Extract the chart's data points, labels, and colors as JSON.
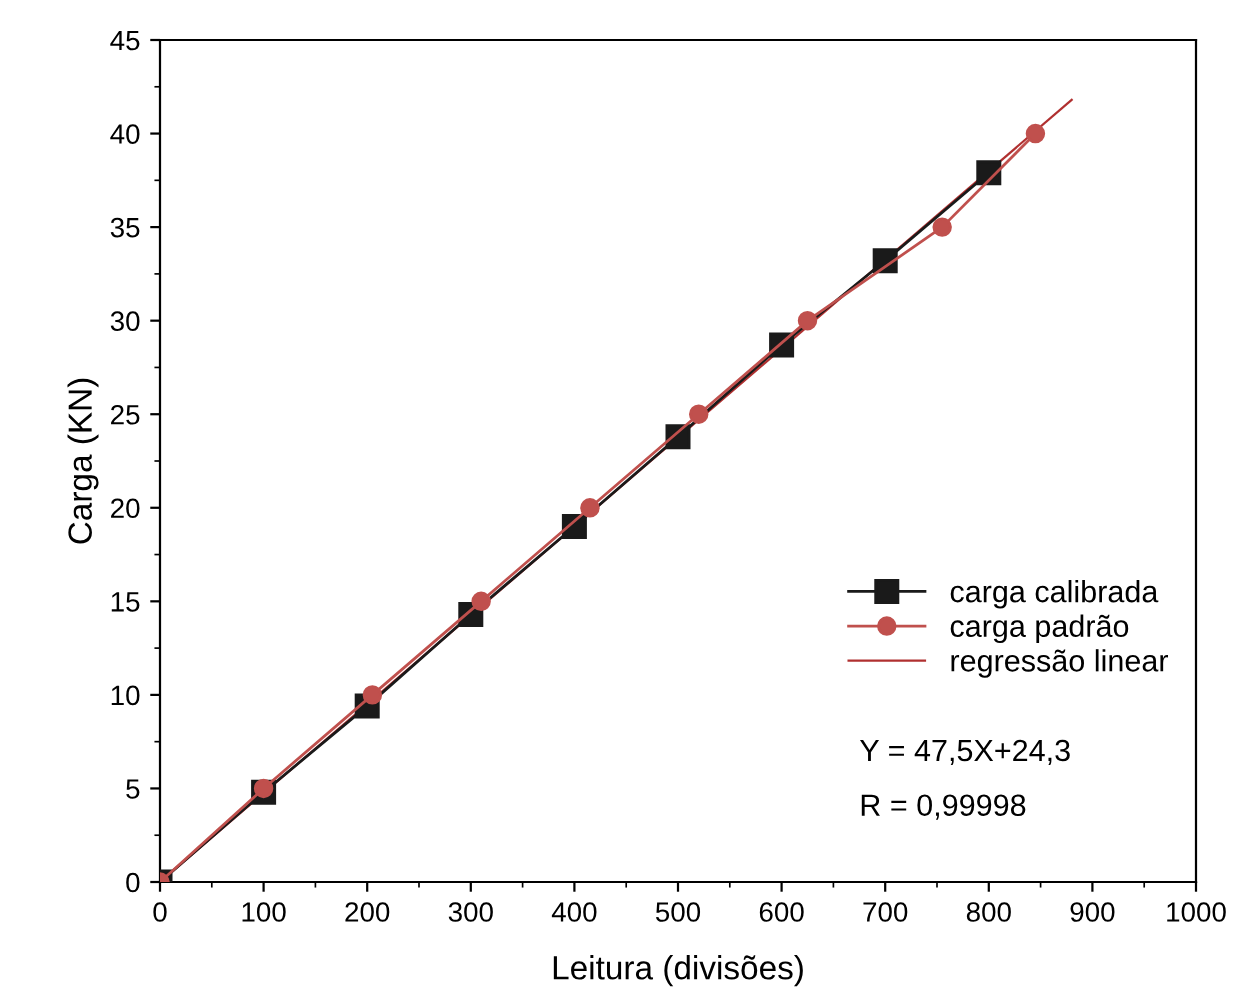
{
  "chart_data": {
    "type": "line",
    "xlabel": "Leitura (divisões)",
    "ylabel": "Carga (KN)",
    "xlim": [
      0,
      1000
    ],
    "xticks": [
      0,
      100,
      200,
      300,
      400,
      500,
      600,
      700,
      800,
      900,
      1000
    ],
    "ylim": [
      0,
      45
    ],
    "yticks": [
      0,
      5,
      10,
      15,
      20,
      25,
      30,
      35,
      40,
      45
    ],
    "grid": false,
    "legend": "bottom right",
    "series": [
      {
        "name": "carga calibrada",
        "color": "#1a1a1a",
        "marker": "square",
        "x": [
          0,
          100,
          200,
          300,
          400,
          500,
          600,
          700,
          800
        ],
        "values": [
          0,
          4.8,
          9.4,
          14.3,
          19.0,
          23.8,
          28.7,
          33.2,
          37.9
        ]
      },
      {
        "name": "carga padrão",
        "color": "#c0504d",
        "marker": "circle",
        "x": [
          0,
          100,
          205,
          310,
          415,
          520,
          625,
          755,
          845
        ],
        "values": [
          0,
          5,
          10,
          15,
          20,
          25,
          30,
          35,
          40
        ]
      },
      {
        "name": "regressão linear",
        "color": "#b03030",
        "marker": "none",
        "x": [
          0,
          880
        ],
        "values": [
          0,
          41.8
        ]
      }
    ],
    "annotations": [
      "Y = 47,5X+24,3",
      "R = 0,99998"
    ]
  }
}
